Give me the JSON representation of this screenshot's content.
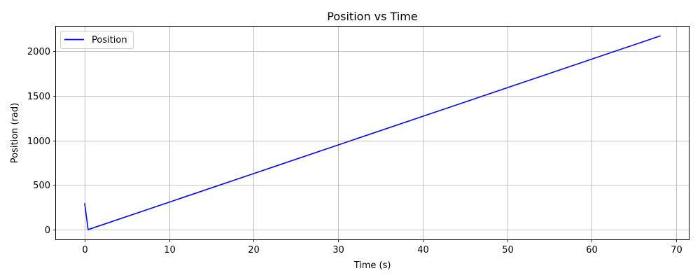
{
  "chart_data": {
    "type": "line",
    "title": "Position vs Time",
    "xlabel": "Time (s)",
    "ylabel": "Position (rad)",
    "xlim": [
      -3.4,
      71.5
    ],
    "ylim": [
      -110,
      2275
    ],
    "xticks": [
      0,
      10,
      20,
      30,
      40,
      50,
      60,
      70
    ],
    "yticks": [
      0,
      500,
      1000,
      1500,
      2000
    ],
    "grid": true,
    "legend_position": "upper-left",
    "series": [
      {
        "name": "Position",
        "color": "#0000ff",
        "x": [
          0,
          0.4,
          68.1
        ],
        "y": [
          290,
          0,
          2170
        ]
      }
    ]
  }
}
